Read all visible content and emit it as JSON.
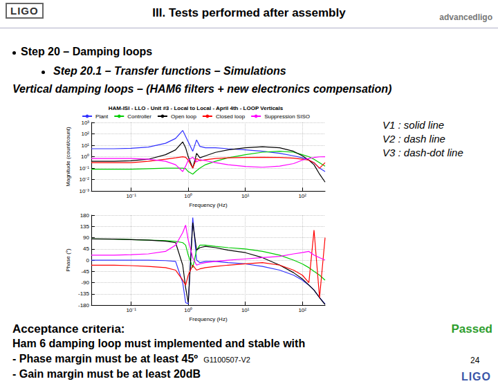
{
  "header": {
    "title": "III. Tests performed after assembly",
    "logo_left": "LIGO",
    "logo_right": "advancedligo"
  },
  "bullets": [
    {
      "level": 1,
      "text": "Step 20 – Damping loops"
    },
    {
      "level": 2,
      "text": "Step 20.1 – Transfer functions – Simulations"
    }
  ],
  "section_title": "Vertical damping loops – (HAM6 filters + new electronics compensation)",
  "line_style_notes": [
    "V1 : solid line",
    "V2 : dash line",
    "V3 : dash-dot line"
  ],
  "criteria": {
    "heading": "Acceptance criteria:",
    "lines": [
      "Ham 6 damping loop must implemented and stable with",
      "- Phase margin must be at least 45º",
      "- Gain margin must be at least 20dB"
    ],
    "result": "Passed"
  },
  "footer": {
    "doc_id": "G1100507-V2",
    "page": "24",
    "logo": "LIGO"
  },
  "chart_data": [
    {
      "type": "line",
      "title": "HAM-ISI - LLO - Unit #3 - Local to Local - April 4th - LOOP Verticals",
      "x_label": "Frequency (Hz)",
      "y_label": "Magnitude (count/count)",
      "log": true,
      "grid": true,
      "legend": "top",
      "xlim": [
        0.02,
        250
      ],
      "xticks": [
        {
          "value": 0.1,
          "label": "10⁻¹"
        },
        {
          "value": 1,
          "label": "10⁰"
        },
        {
          "value": 10,
          "label": "10¹"
        },
        {
          "value": 100,
          "label": "10²"
        }
      ],
      "ylim": [
        0.001,
        1000
      ],
      "yticks": [
        {
          "value": 0.001,
          "label": "10⁻³"
        },
        {
          "value": 0.01,
          "label": "10⁻²"
        },
        {
          "value": 0.1,
          "label": "10⁻¹"
        },
        {
          "value": 1,
          "label": "10⁰"
        },
        {
          "value": 10,
          "label": "10¹"
        },
        {
          "value": 100,
          "label": "10²"
        },
        {
          "value": 1000,
          "label": "10³"
        }
      ],
      "x": [
        0.02,
        0.05,
        0.1,
        0.2,
        0.4,
        0.6,
        0.8,
        0.9,
        1,
        1.2,
        1.4,
        1.6,
        2,
        3,
        5,
        10,
        20,
        40,
        70,
        100,
        130,
        160,
        200,
        250
      ],
      "series": [
        {
          "name": "Plant",
          "color": "#3030ff",
          "line_style": "solid",
          "values": [
            5,
            5,
            5.5,
            7,
            15,
            40,
            200,
            60,
            20,
            3,
            30,
            8,
            6,
            6,
            5,
            4,
            3,
            2,
            1.2,
            0.8,
            0.5,
            0.3,
            0.1,
            0.05
          ]
        },
        {
          "name": "Controller",
          "color": "#00cc00",
          "line_style": "solid",
          "values": [
            0.08,
            0.08,
            0.08,
            0.09,
            0.1,
            0.1,
            0.1,
            0.09,
            0.05,
            0.03,
            0.06,
            0.1,
            0.2,
            0.4,
            0.8,
            1.5,
            2.5,
            3,
            2.5,
            1.5,
            1,
            0.6,
            0.3,
            0.15
          ]
        },
        {
          "name": "Open loop",
          "color": "#000000",
          "line_style": "solid",
          "values": [
            0.4,
            0.4,
            0.45,
            0.6,
            1.5,
            4,
            20,
            6,
            1,
            0.1,
            2,
            0.8,
            1.2,
            2.4,
            4,
            6,
            7.5,
            6,
            3,
            1.2,
            0.5,
            0.2,
            0.03,
            0.006
          ]
        },
        {
          "name": "Closed loop",
          "color": "#ff0000",
          "line_style": "solid",
          "values": [
            0.3,
            0.3,
            0.3,
            0.4,
            0.6,
            0.8,
            1,
            0.9,
            0.5,
            0.1,
            0.7,
            0.45,
            0.55,
            0.7,
            0.8,
            0.85,
            0.9,
            0.85,
            0.75,
            0.6,
            0.5,
            0.3,
            0.1,
            0.3
          ]
        },
        {
          "name": "Suppression SISO",
          "color": "#ff00ff",
          "line_style": "solid",
          "values": [
            0.7,
            0.7,
            0.7,
            0.6,
            0.4,
            0.2,
            0.05,
            0.15,
            0.5,
            0.9,
            0.35,
            0.55,
            0.45,
            0.3,
            0.2,
            0.14,
            0.12,
            0.15,
            0.25,
            0.5,
            0.7,
            0.85,
            0.97,
            1
          ]
        }
      ]
    },
    {
      "type": "line",
      "x_label": "Frequency (Hz)",
      "y_label": "Phase (°)",
      "log": "x",
      "grid": true,
      "xlim": [
        0.02,
        250
      ],
      "xticks": [
        {
          "value": 0.1,
          "label": "10⁻¹"
        },
        {
          "value": 1,
          "label": "10⁰"
        },
        {
          "value": 10,
          "label": "10¹"
        },
        {
          "value": 100,
          "label": "10²"
        }
      ],
      "ylim": [
        -180,
        180
      ],
      "yticks": [
        -180,
        -135,
        -90,
        -45,
        0,
        45,
        90,
        135,
        180
      ],
      "x": [
        0.02,
        0.05,
        0.1,
        0.2,
        0.4,
        0.6,
        0.8,
        0.9,
        1,
        1.2,
        1.4,
        1.6,
        2,
        3,
        5,
        10,
        20,
        40,
        70,
        100,
        130,
        160,
        200,
        250
      ],
      "series": [
        {
          "color": "#3030ff",
          "line_style": "solid",
          "values": [
            0,
            0,
            0,
            0,
            -2,
            -5,
            -90,
            -170,
            -175,
            170,
            0,
            -10,
            -5,
            -5,
            -10,
            -15,
            -25,
            -40,
            -60,
            -80,
            -100,
            -120,
            -150,
            -175
          ]
        },
        {
          "color": "#00cc00",
          "line_style": "solid",
          "values": [
            85,
            84,
            82,
            80,
            78,
            75,
            70,
            60,
            20,
            -30,
            40,
            60,
            60,
            55,
            50,
            45,
            35,
            20,
            0,
            -15,
            -30,
            -45,
            -60,
            -80
          ]
        },
        {
          "color": "#000000",
          "line_style": "solid",
          "values": [
            85,
            84,
            82,
            80,
            76,
            70,
            -20,
            -110,
            -170,
            150,
            40,
            50,
            55,
            50,
            40,
            30,
            10,
            -20,
            -50,
            -75,
            -100,
            -120,
            -150,
            -178
          ]
        },
        {
          "color": "#ff0000",
          "line_style": "solid",
          "values": [
            -20,
            -20,
            -22,
            -25,
            -30,
            -40,
            -80,
            -100,
            -60,
            -20,
            -40,
            -35,
            -30,
            -25,
            -20,
            -15,
            -10,
            -20,
            -40,
            -60,
            -90,
            120,
            -150,
            90
          ]
        },
        {
          "color": "#ff00ff",
          "line_style": "solid",
          "values": [
            20,
            20,
            22,
            25,
            35,
            60,
            110,
            140,
            80,
            10,
            -20,
            -15,
            -10,
            -5,
            0,
            5,
            10,
            15,
            25,
            30,
            35,
            20,
            10,
            0
          ]
        }
      ]
    }
  ]
}
